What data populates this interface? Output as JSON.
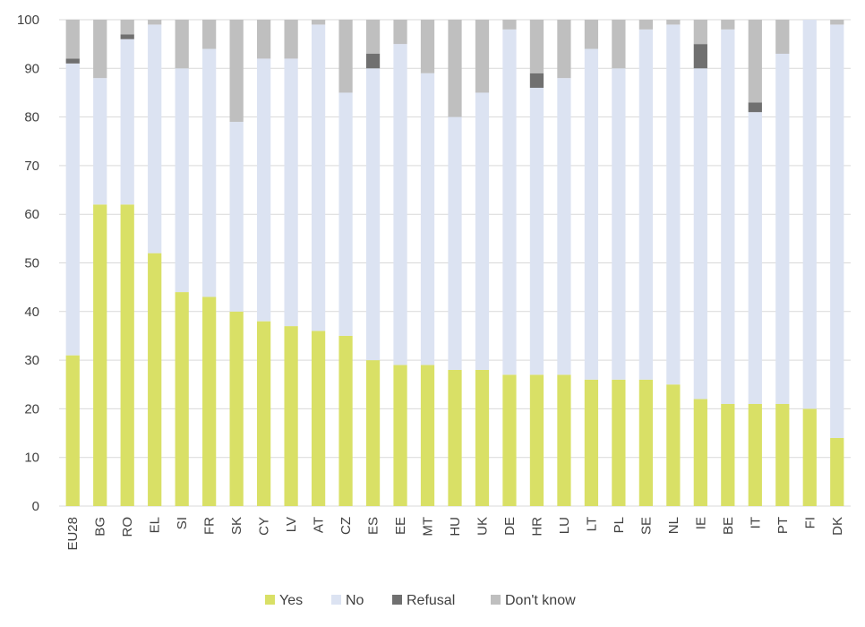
{
  "chart_data": {
    "type": "bar",
    "stacked": true,
    "categories": [
      "EU28",
      "BG",
      "RO",
      "EL",
      "SI",
      "FR",
      "SK",
      "CY",
      "LV",
      "AT",
      "CZ",
      "ES",
      "EE",
      "MT",
      "HU",
      "UK",
      "DE",
      "HR",
      "LU",
      "LT",
      "PL",
      "SE",
      "NL",
      "IE",
      "BE",
      "IT",
      "PT",
      "FI",
      "DK"
    ],
    "series": [
      {
        "name": "Yes",
        "color": "#d9e066",
        "values": [
          31,
          62,
          62,
          52,
          44,
          43,
          40,
          38,
          37,
          36,
          35,
          30,
          29,
          29,
          28,
          28,
          27,
          27,
          27,
          26,
          26,
          26,
          25,
          22,
          21,
          21,
          21,
          20,
          14
        ]
      },
      {
        "name": "No",
        "color": "#dce3f2",
        "values": [
          60,
          26,
          34,
          47,
          46,
          51,
          39,
          54,
          55,
          63,
          50,
          60,
          66,
          60,
          52,
          57,
          71,
          59,
          61,
          68,
          64,
          72,
          74,
          68,
          77,
          60,
          72,
          80,
          85
        ]
      },
      {
        "name": "Refusal",
        "color": "#707070",
        "values": [
          1,
          0,
          1,
          0,
          0,
          0,
          0,
          0,
          0,
          0,
          0,
          3,
          0,
          0,
          0,
          0,
          0,
          3,
          0,
          0,
          0,
          0,
          0,
          5,
          0,
          2,
          0,
          0,
          0
        ]
      },
      {
        "name": "Don't know",
        "color": "#bfbfbf",
        "values": [
          8,
          12,
          3,
          1,
          10,
          6,
          21,
          8,
          8,
          1,
          15,
          7,
          5,
          11,
          20,
          15,
          2,
          11,
          12,
          6,
          10,
          2,
          1,
          5,
          2,
          17,
          7,
          0,
          1
        ]
      }
    ],
    "ylim": [
      0,
      100
    ],
    "yticks": [
      0,
      10,
      20,
      30,
      40,
      50,
      60,
      70,
      80,
      90,
      100
    ],
    "grid": true,
    "legend": "bottom"
  }
}
